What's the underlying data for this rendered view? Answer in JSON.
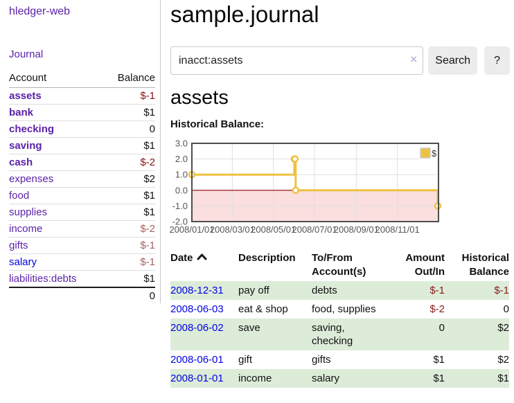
{
  "app": {
    "title": "hledger-web"
  },
  "colors": {
    "link_purple": "#5b22a8",
    "link_blue": "#0202e2",
    "negative_strong": "#8b0f0f",
    "negative_light": "#a85f5f",
    "row_green": "#dcecd8",
    "chart_line": "#edc240"
  },
  "sidebar": {
    "journal_link": "Journal",
    "accounts_table": {
      "headers": {
        "account": "Account",
        "balance": "Balance"
      },
      "rows": [
        {
          "account": "assets",
          "level": 1,
          "bold": true,
          "balance": "$-1",
          "balance_style": "neg-strong",
          "link_color": "purple"
        },
        {
          "account": "bank",
          "level": 2,
          "bold": true,
          "balance": "$1",
          "balance_style": "pos",
          "link_color": "purple"
        },
        {
          "account": "checking",
          "level": 3,
          "bold": true,
          "balance": "0",
          "balance_style": "pos",
          "link_color": "purple"
        },
        {
          "account": "saving",
          "level": 3,
          "bold": true,
          "balance": "$1",
          "balance_style": "pos",
          "link_color": "purple"
        },
        {
          "account": "cash",
          "level": 2,
          "bold": true,
          "balance": "$-2",
          "balance_style": "neg-strong",
          "link_color": "purple"
        },
        {
          "account": "expenses",
          "level": 1,
          "bold": false,
          "balance": "$2",
          "balance_style": "pos",
          "link_color": "purple"
        },
        {
          "account": "food",
          "level": 2,
          "bold": false,
          "balance": "$1",
          "balance_style": "pos",
          "link_color": "purple"
        },
        {
          "account": "supplies",
          "level": 2,
          "bold": false,
          "balance": "$1",
          "balance_style": "pos",
          "link_color": "purple"
        },
        {
          "account": "income",
          "level": 1,
          "bold": false,
          "balance": "$-2",
          "balance_style": "neg-light",
          "link_color": "purple"
        },
        {
          "account": "gifts",
          "level": 2,
          "bold": false,
          "balance": "$-1",
          "balance_style": "neg-light",
          "link_color": "purple"
        },
        {
          "account": "salary",
          "level": 2,
          "bold": false,
          "balance": "$-1",
          "balance_style": "neg-light",
          "link_color": "blue"
        },
        {
          "account": "liabilities:debts",
          "level": 1,
          "bold": false,
          "balance": "$1",
          "balance_style": "pos",
          "link_color": "purple"
        }
      ],
      "total": "0"
    }
  },
  "main": {
    "title": "sample.journal",
    "search": {
      "value": "inacct:assets",
      "clear_icon": "×",
      "button_label": "Search",
      "help_label": "?"
    },
    "account_heading": "assets",
    "chart_label": "Historical Balance:",
    "register_table": {
      "headers": [
        {
          "label": "Date",
          "sortable": true,
          "sort": "asc"
        },
        {
          "label": "Description"
        },
        {
          "label": "To/From Account(s)"
        },
        {
          "label": "Amount Out/In",
          "align": "right"
        },
        {
          "label": "Historical Balance",
          "align": "right"
        }
      ],
      "rows": [
        {
          "date": "2008-12-31",
          "description": "pay off",
          "accounts": "debts",
          "amount": "$-1",
          "amount_negative": true,
          "balance": "$-1",
          "balance_negative": true
        },
        {
          "date": "2008-06-03",
          "description": "eat & shop",
          "accounts": "food, supplies",
          "amount": "$-2",
          "amount_negative": true,
          "balance": "0",
          "balance_negative": false
        },
        {
          "date": "2008-06-02",
          "description": "save",
          "accounts": "saving, checking",
          "amount": "0",
          "amount_negative": false,
          "balance": "$2",
          "balance_negative": false
        },
        {
          "date": "2008-06-01",
          "description": "gift",
          "accounts": "gifts",
          "amount": "$1",
          "amount_negative": false,
          "balance": "$2",
          "balance_negative": false
        },
        {
          "date": "2008-01-01",
          "description": "income",
          "accounts": "salary",
          "amount": "$1",
          "amount_negative": false,
          "balance": "$1",
          "balance_negative": false
        }
      ]
    }
  },
  "chart_data": {
    "type": "line",
    "title": "Historical Balance",
    "style": "step",
    "series": [
      {
        "name": "$",
        "color": "#edc240",
        "points": [
          {
            "date": "2008-01-01",
            "value": 1
          },
          {
            "date": "2008-06-01",
            "value": 2
          },
          {
            "date": "2008-06-02",
            "value": 2
          },
          {
            "date": "2008-06-03",
            "value": 0
          },
          {
            "date": "2008-12-31",
            "value": -1
          }
        ]
      }
    ],
    "x_range": [
      "2008-01-01",
      "2009-01-01"
    ],
    "ylim": [
      -2,
      3
    ],
    "y_ticks": [
      {
        "value": 3,
        "label": "3.0"
      },
      {
        "value": 2,
        "label": "2.0"
      },
      {
        "value": 1,
        "label": "1.0"
      },
      {
        "value": 0,
        "label": "0.0"
      },
      {
        "value": -1,
        "label": "-1.0"
      },
      {
        "value": -2,
        "label": "-2.0"
      }
    ],
    "x_ticks": [
      {
        "date": "2008-01-01",
        "label": "2008/01/01"
      },
      {
        "date": "2008-03-01",
        "label": "2008/03/01"
      },
      {
        "date": "2008-05-01",
        "label": "2008/05/01"
      },
      {
        "date": "2008-07-01",
        "label": "2008/07/01"
      },
      {
        "date": "2008-09-01",
        "label": "2008/09/01"
      },
      {
        "date": "2008-11-01",
        "label": "2008/11/01"
      }
    ],
    "grid": true,
    "legend_position": "top-right",
    "grid_color": "#e0e0e0",
    "border_color": "#4d4d4d",
    "tick_color": "#545454",
    "negative_region_color": "#fbdede",
    "zero_line_color": "#8b0000"
  }
}
